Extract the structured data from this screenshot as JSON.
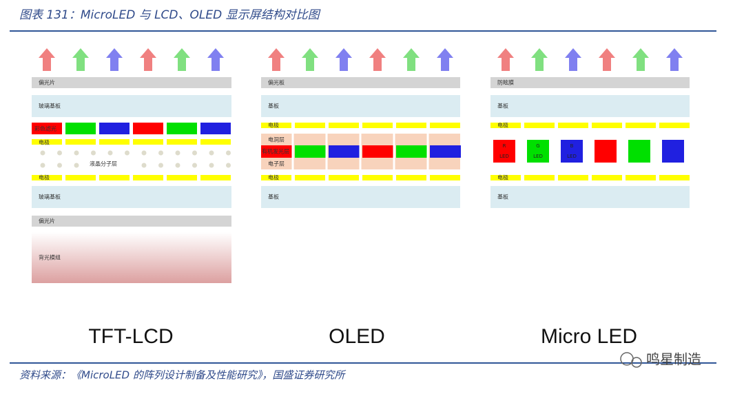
{
  "header": {
    "title": "图表 131：MicroLED 与 LCD、OLED 显示屏结构对比图"
  },
  "columns": [
    {
      "label": "TFT-LCD",
      "layers": [
        "偏光片",
        "玻璃基板",
        "彩色滤光",
        "电极",
        "液晶分子层",
        "电极",
        "玻璃基板",
        "偏光片",
        "背光模组"
      ]
    },
    {
      "label": "OLED",
      "layers": [
        "偏光板",
        "基板",
        "电极",
        "电洞层",
        "有机发光层",
        "电子层",
        "电极",
        "基板"
      ]
    },
    {
      "label": "Micro LED",
      "layers": [
        "防眩膜",
        "基板",
        "电极",
        "电极",
        "基板"
      ],
      "chips": [
        {
          "color": "R",
          "label": "LED"
        },
        {
          "color": "G",
          "label": "LED"
        },
        {
          "color": "B",
          "label": "LED"
        }
      ]
    }
  ],
  "footer": {
    "source": "资料来源：《MicroLED 的阵列设计制备及性能研究》，国盛证券研究所",
    "watermark": "鸣星制造"
  }
}
